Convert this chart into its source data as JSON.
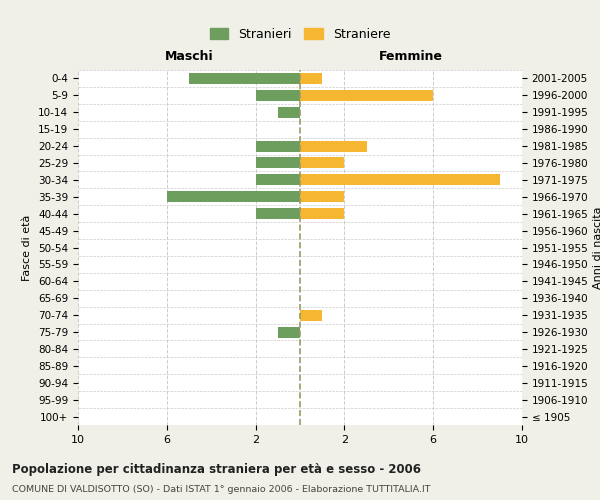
{
  "age_groups": [
    "100+",
    "95-99",
    "90-94",
    "85-89",
    "80-84",
    "75-79",
    "70-74",
    "65-69",
    "60-64",
    "55-59",
    "50-54",
    "45-49",
    "40-44",
    "35-39",
    "30-34",
    "25-29",
    "20-24",
    "15-19",
    "10-14",
    "5-9",
    "0-4"
  ],
  "birth_years": [
    "≤ 1905",
    "1906-1910",
    "1911-1915",
    "1916-1920",
    "1921-1925",
    "1926-1930",
    "1931-1935",
    "1936-1940",
    "1941-1945",
    "1946-1950",
    "1951-1955",
    "1956-1960",
    "1961-1965",
    "1966-1970",
    "1971-1975",
    "1976-1980",
    "1981-1985",
    "1986-1990",
    "1991-1995",
    "1996-2000",
    "2001-2005"
  ],
  "maschi": [
    0,
    0,
    0,
    0,
    0,
    1,
    0,
    0,
    0,
    0,
    0,
    0,
    2,
    6,
    2,
    2,
    2,
    0,
    1,
    2,
    5
  ],
  "femmine": [
    0,
    0,
    0,
    0,
    0,
    0,
    1,
    0,
    0,
    0,
    0,
    0,
    2,
    2,
    9,
    2,
    3,
    0,
    0,
    6,
    1
  ],
  "color_maschi": "#6e9e5e",
  "color_femmine": "#f5b731",
  "title": "Popolazione per cittadinanza straniera per età e sesso - 2006",
  "subtitle": "COMUNE DI VALDISOTTO (SO) - Dati ISTAT 1° gennaio 2006 - Elaborazione TUTTITALIA.IT",
  "label_maschi": "Maschi",
  "label_femmine": "Femmine",
  "ylabel_left": "Fasce di età",
  "ylabel_right": "Anni di nascita",
  "legend_maschi": "Stranieri",
  "legend_femmine": "Straniere",
  "xlim": 10,
  "bg_color": "#f0f0e8",
  "plot_bg_color": "#ffffff",
  "grid_color": "#cccccc",
  "center_line_color": "#999966"
}
